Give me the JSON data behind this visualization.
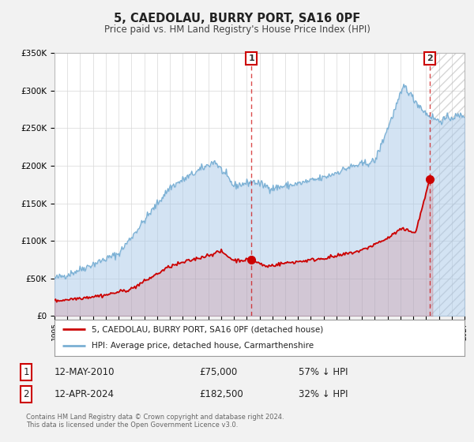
{
  "title": "5, CAEDOLAU, BURRY PORT, SA16 0PF",
  "subtitle": "Price paid vs. HM Land Registry's House Price Index (HPI)",
  "legend_label_red": "5, CAEDOLAU, BURRY PORT, SA16 0PF (detached house)",
  "legend_label_blue": "HPI: Average price, detached house, Carmarthenshire",
  "transaction1_date": "12-MAY-2010",
  "transaction1_price": "£75,000",
  "transaction1_hpi": "57% ↓ HPI",
  "transaction1_year": 2010.36,
  "transaction1_value": 75000,
  "transaction2_date": "12-APR-2024",
  "transaction2_price": "£182,500",
  "transaction2_hpi": "32% ↓ HPI",
  "transaction2_year": 2024.28,
  "transaction2_value": 182500,
  "footer_line1": "Contains HM Land Registry data © Crown copyright and database right 2024.",
  "footer_line2": "This data is licensed under the Open Government Licence v3.0.",
  "hpi_color": "#a8c8e8",
  "hpi_line_color": "#7ab0d4",
  "sale_color": "#cc0000",
  "background_color": "#f2f2f2",
  "plot_background": "#ffffff",
  "hatch_start": 2024.28,
  "ylim": [
    0,
    350000
  ],
  "xlim_start": 1995,
  "xlim_end": 2027,
  "ylabel_ticks": [
    0,
    50000,
    100000,
    150000,
    200000,
    250000,
    300000,
    350000
  ],
  "ylabel_labels": [
    "£0",
    "£50K",
    "£100K",
    "£150K",
    "£200K",
    "£250K",
    "£300K",
    "£350K"
  ]
}
